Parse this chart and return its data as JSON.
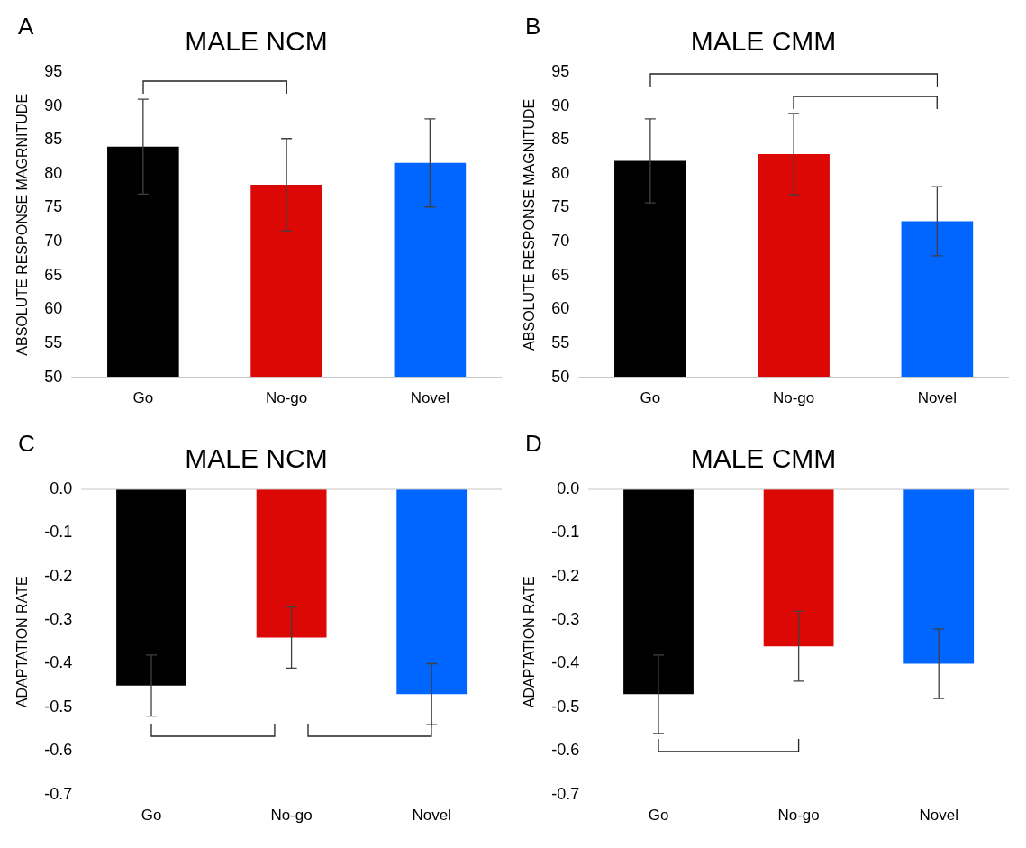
{
  "chart_data": [
    {
      "type": "bar",
      "title": "MALE NCM",
      "ylabel": "ABSOLUTE RESPONSE MAGRNITUDE",
      "annotations": [
        "A"
      ],
      "categories": [
        "Go",
        "No-go",
        "Novel"
      ],
      "values": [
        84,
        78.4,
        81.6
      ],
      "colors": [
        "#000000",
        "#dc0805",
        "#0066ff"
      ],
      "errors": [
        7,
        6.8,
        6.5
      ],
      "ylim": [
        50,
        95
      ],
      "yticks": [
        50,
        55,
        60,
        65,
        70,
        75,
        80,
        85,
        90,
        95
      ],
      "grid": false
    },
    {
      "type": "bar",
      "title": "MALE CMM",
      "ylabel": "ABSOLUTE RESPONSE MAGNITUDE",
      "annotations": [
        "B"
      ],
      "categories": [
        "Go",
        "No-go",
        "Novel"
      ],
      "values": [
        81.9,
        82.9,
        73
      ],
      "colors": [
        "#000000",
        "#dc0805",
        "#0066ff"
      ],
      "errors": [
        6.2,
        6,
        5.1
      ],
      "ylim": [
        50,
        95
      ],
      "yticks": [
        50,
        55,
        60,
        65,
        70,
        75,
        80,
        85,
        90,
        95
      ],
      "grid": false
    },
    {
      "type": "bar",
      "title": "MALE NCM",
      "ylabel": "ADAPTATION RATE",
      "annotations": [
        "C"
      ],
      "categories": [
        "Go",
        "No-go",
        "Novel"
      ],
      "values": [
        -0.45,
        -0.34,
        -0.47
      ],
      "colors": [
        "#000000",
        "#dc0805",
        "#0066ff"
      ],
      "errors": [
        0.07,
        0.07,
        0.07
      ],
      "ylim": [
        -0.7,
        0
      ],
      "yticks": [
        {
          "value": 0,
          "label": "0.0"
        },
        -0.1,
        -0.2,
        -0.3,
        -0.4,
        -0.5,
        -0.6,
        -0.7
      ],
      "grid": false
    },
    {
      "type": "bar",
      "title": "MALE CMM",
      "ylabel": "ADAPTATION RATE",
      "annotations": [
        "D"
      ],
      "categories": [
        "Go",
        "No-go",
        "Novel"
      ],
      "values": [
        -0.47,
        -0.36,
        -0.4
      ],
      "colors": [
        "#000000",
        "#dc0805",
        "#0066ff"
      ],
      "errors": [
        0.09,
        0.08,
        0.08
      ],
      "ylim": [
        -0.7,
        0
      ],
      "yticks": [
        {
          "value": 0,
          "label": "0.0"
        },
        -0.1,
        -0.2,
        -0.3,
        -0.4,
        -0.5,
        -0.6,
        -0.7
      ],
      "grid": false
    }
  ]
}
